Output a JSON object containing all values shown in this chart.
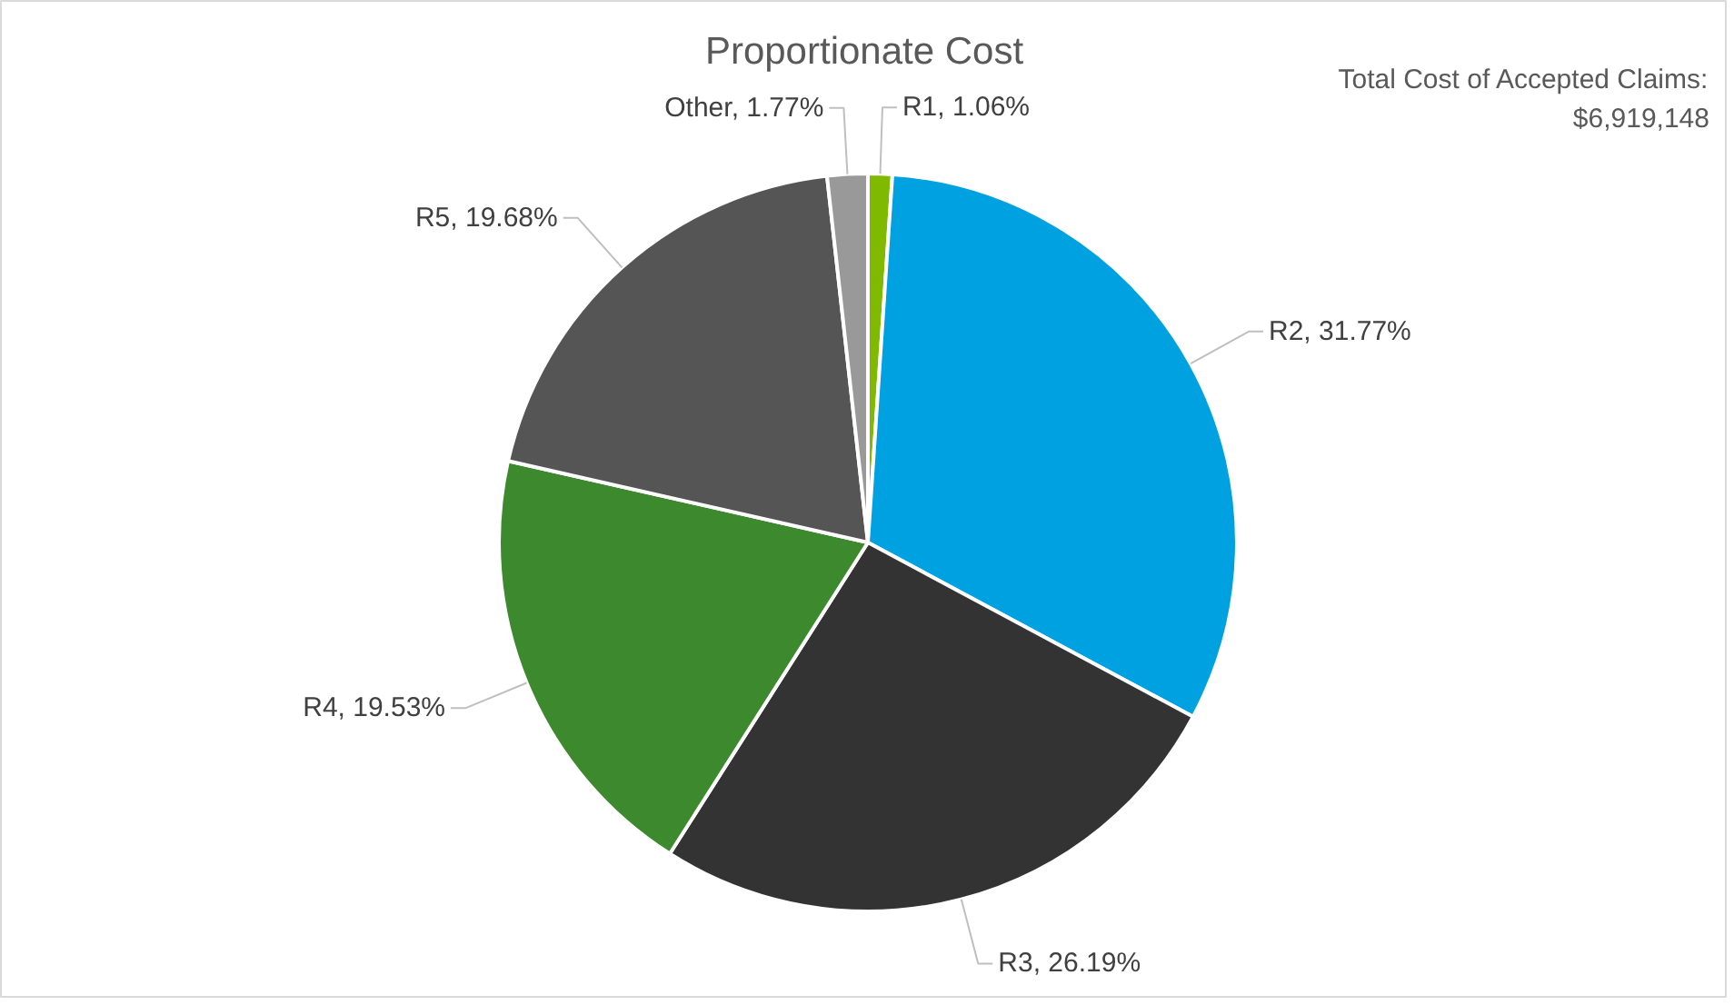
{
  "chart_data": {
    "type": "pie",
    "title": "Proportionate Cost",
    "categories": [
      "R1",
      "R2",
      "R3",
      "R4",
      "R5",
      "Other"
    ],
    "values": [
      1.06,
      31.77,
      26.19,
      19.53,
      19.68,
      1.77
    ],
    "colors": [
      "#7fba00",
      "#00a1e0",
      "#333333",
      "#3d8a2e",
      "#555555",
      "#999999"
    ],
    "value_labels": [
      "1.06%",
      "31.77%",
      "26.19%",
      "19.53%",
      "19.68%",
      "1.77%"
    ],
    "annotations": [
      "Total Cost of Accepted Claims:\n$6,919,148"
    ]
  }
}
